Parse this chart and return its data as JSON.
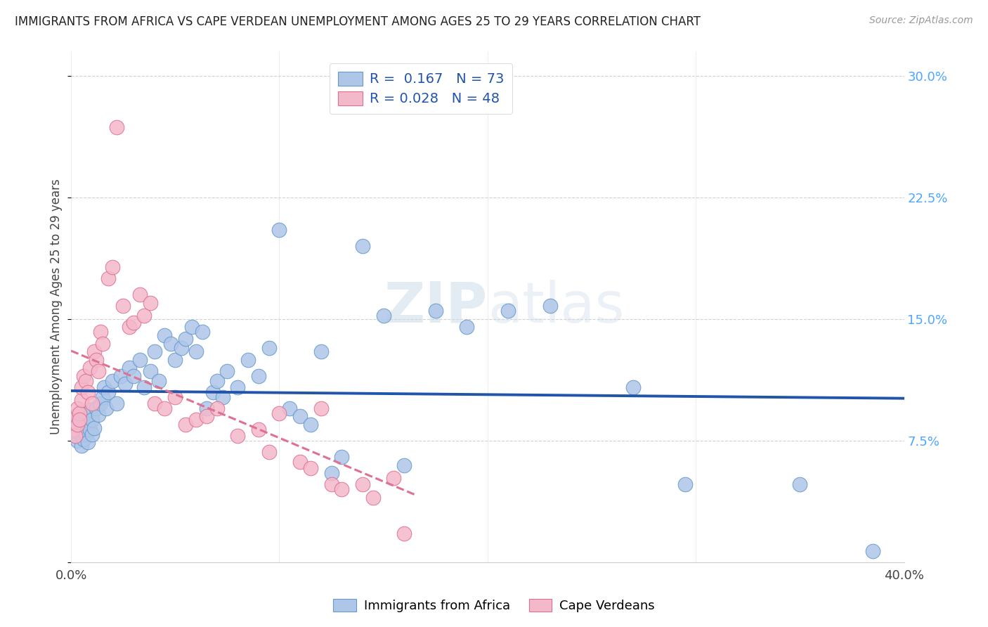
{
  "title": "IMMIGRANTS FROM AFRICA VS CAPE VERDEAN UNEMPLOYMENT AMONG AGES 25 TO 29 YEARS CORRELATION CHART",
  "source": "Source: ZipAtlas.com",
  "ylabel": "Unemployment Among Ages 25 to 29 years",
  "xlim": [
    0.0,
    0.4
  ],
  "ylim": [
    0.0,
    0.315
  ],
  "xticks": [
    0.0,
    0.1,
    0.2,
    0.3,
    0.4
  ],
  "xtick_labels": [
    "0.0%",
    "",
    "",
    "",
    "40.0%"
  ],
  "yticks_right": [
    0.0,
    0.075,
    0.15,
    0.225,
    0.3
  ],
  "ytick_labels_right": [
    "",
    "7.5%",
    "15.0%",
    "22.5%",
    "30.0%"
  ],
  "blue_color": "#aec6e8",
  "blue_edge_color": "#6699cc",
  "pink_color": "#f4b8cb",
  "pink_edge_color": "#e07090",
  "blue_line_color": "#2255aa",
  "pink_line_color": "#e07090",
  "R_blue": 0.167,
  "N_blue": 73,
  "R_pink": 0.028,
  "N_pink": 48,
  "legend_label_blue": "Immigrants from Africa",
  "legend_label_pink": "Cape Verdeans",
  "watermark": "ZIPatlas",
  "background_color": "#ffffff",
  "grid_color": "#cccccc",
  "blue_scatter_x": [
    0.001,
    0.002,
    0.002,
    0.003,
    0.003,
    0.004,
    0.004,
    0.005,
    0.005,
    0.006,
    0.006,
    0.007,
    0.007,
    0.008,
    0.008,
    0.009,
    0.009,
    0.01,
    0.01,
    0.011,
    0.012,
    0.013,
    0.014,
    0.015,
    0.016,
    0.017,
    0.018,
    0.02,
    0.022,
    0.024,
    0.026,
    0.028,
    0.03,
    0.033,
    0.035,
    0.038,
    0.04,
    0.042,
    0.045,
    0.048,
    0.05,
    0.053,
    0.055,
    0.058,
    0.06,
    0.063,
    0.065,
    0.068,
    0.07,
    0.073,
    0.075,
    0.08,
    0.085,
    0.09,
    0.095,
    0.1,
    0.105,
    0.11,
    0.115,
    0.12,
    0.125,
    0.13,
    0.14,
    0.15,
    0.16,
    0.175,
    0.19,
    0.21,
    0.23,
    0.27,
    0.295,
    0.35,
    0.385
  ],
  "blue_scatter_y": [
    0.082,
    0.078,
    0.088,
    0.075,
    0.085,
    0.08,
    0.09,
    0.072,
    0.083,
    0.076,
    0.087,
    0.079,
    0.092,
    0.074,
    0.086,
    0.082,
    0.094,
    0.079,
    0.088,
    0.083,
    0.095,
    0.091,
    0.098,
    0.102,
    0.108,
    0.095,
    0.105,
    0.112,
    0.098,
    0.115,
    0.11,
    0.12,
    0.115,
    0.125,
    0.108,
    0.118,
    0.13,
    0.112,
    0.14,
    0.135,
    0.125,
    0.132,
    0.138,
    0.145,
    0.13,
    0.142,
    0.095,
    0.105,
    0.112,
    0.102,
    0.118,
    0.108,
    0.125,
    0.115,
    0.132,
    0.205,
    0.095,
    0.09,
    0.085,
    0.13,
    0.055,
    0.065,
    0.195,
    0.152,
    0.06,
    0.155,
    0.145,
    0.155,
    0.158,
    0.108,
    0.048,
    0.048,
    0.007
  ],
  "pink_scatter_x": [
    0.001,
    0.002,
    0.002,
    0.003,
    0.003,
    0.004,
    0.004,
    0.005,
    0.005,
    0.006,
    0.007,
    0.008,
    0.009,
    0.01,
    0.011,
    0.012,
    0.013,
    0.014,
    0.015,
    0.018,
    0.02,
    0.022,
    0.025,
    0.028,
    0.03,
    0.033,
    0.035,
    0.038,
    0.04,
    0.045,
    0.05,
    0.055,
    0.06,
    0.065,
    0.07,
    0.08,
    0.09,
    0.095,
    0.1,
    0.11,
    0.115,
    0.12,
    0.125,
    0.13,
    0.14,
    0.145,
    0.155,
    0.16
  ],
  "pink_scatter_y": [
    0.082,
    0.078,
    0.09,
    0.085,
    0.095,
    0.092,
    0.088,
    0.1,
    0.108,
    0.115,
    0.112,
    0.105,
    0.12,
    0.098,
    0.13,
    0.125,
    0.118,
    0.142,
    0.135,
    0.175,
    0.182,
    0.268,
    0.158,
    0.145,
    0.148,
    0.165,
    0.152,
    0.16,
    0.098,
    0.095,
    0.102,
    0.085,
    0.088,
    0.09,
    0.095,
    0.078,
    0.082,
    0.068,
    0.092,
    0.062,
    0.058,
    0.095,
    0.048,
    0.045,
    0.048,
    0.04,
    0.052,
    0.018
  ]
}
